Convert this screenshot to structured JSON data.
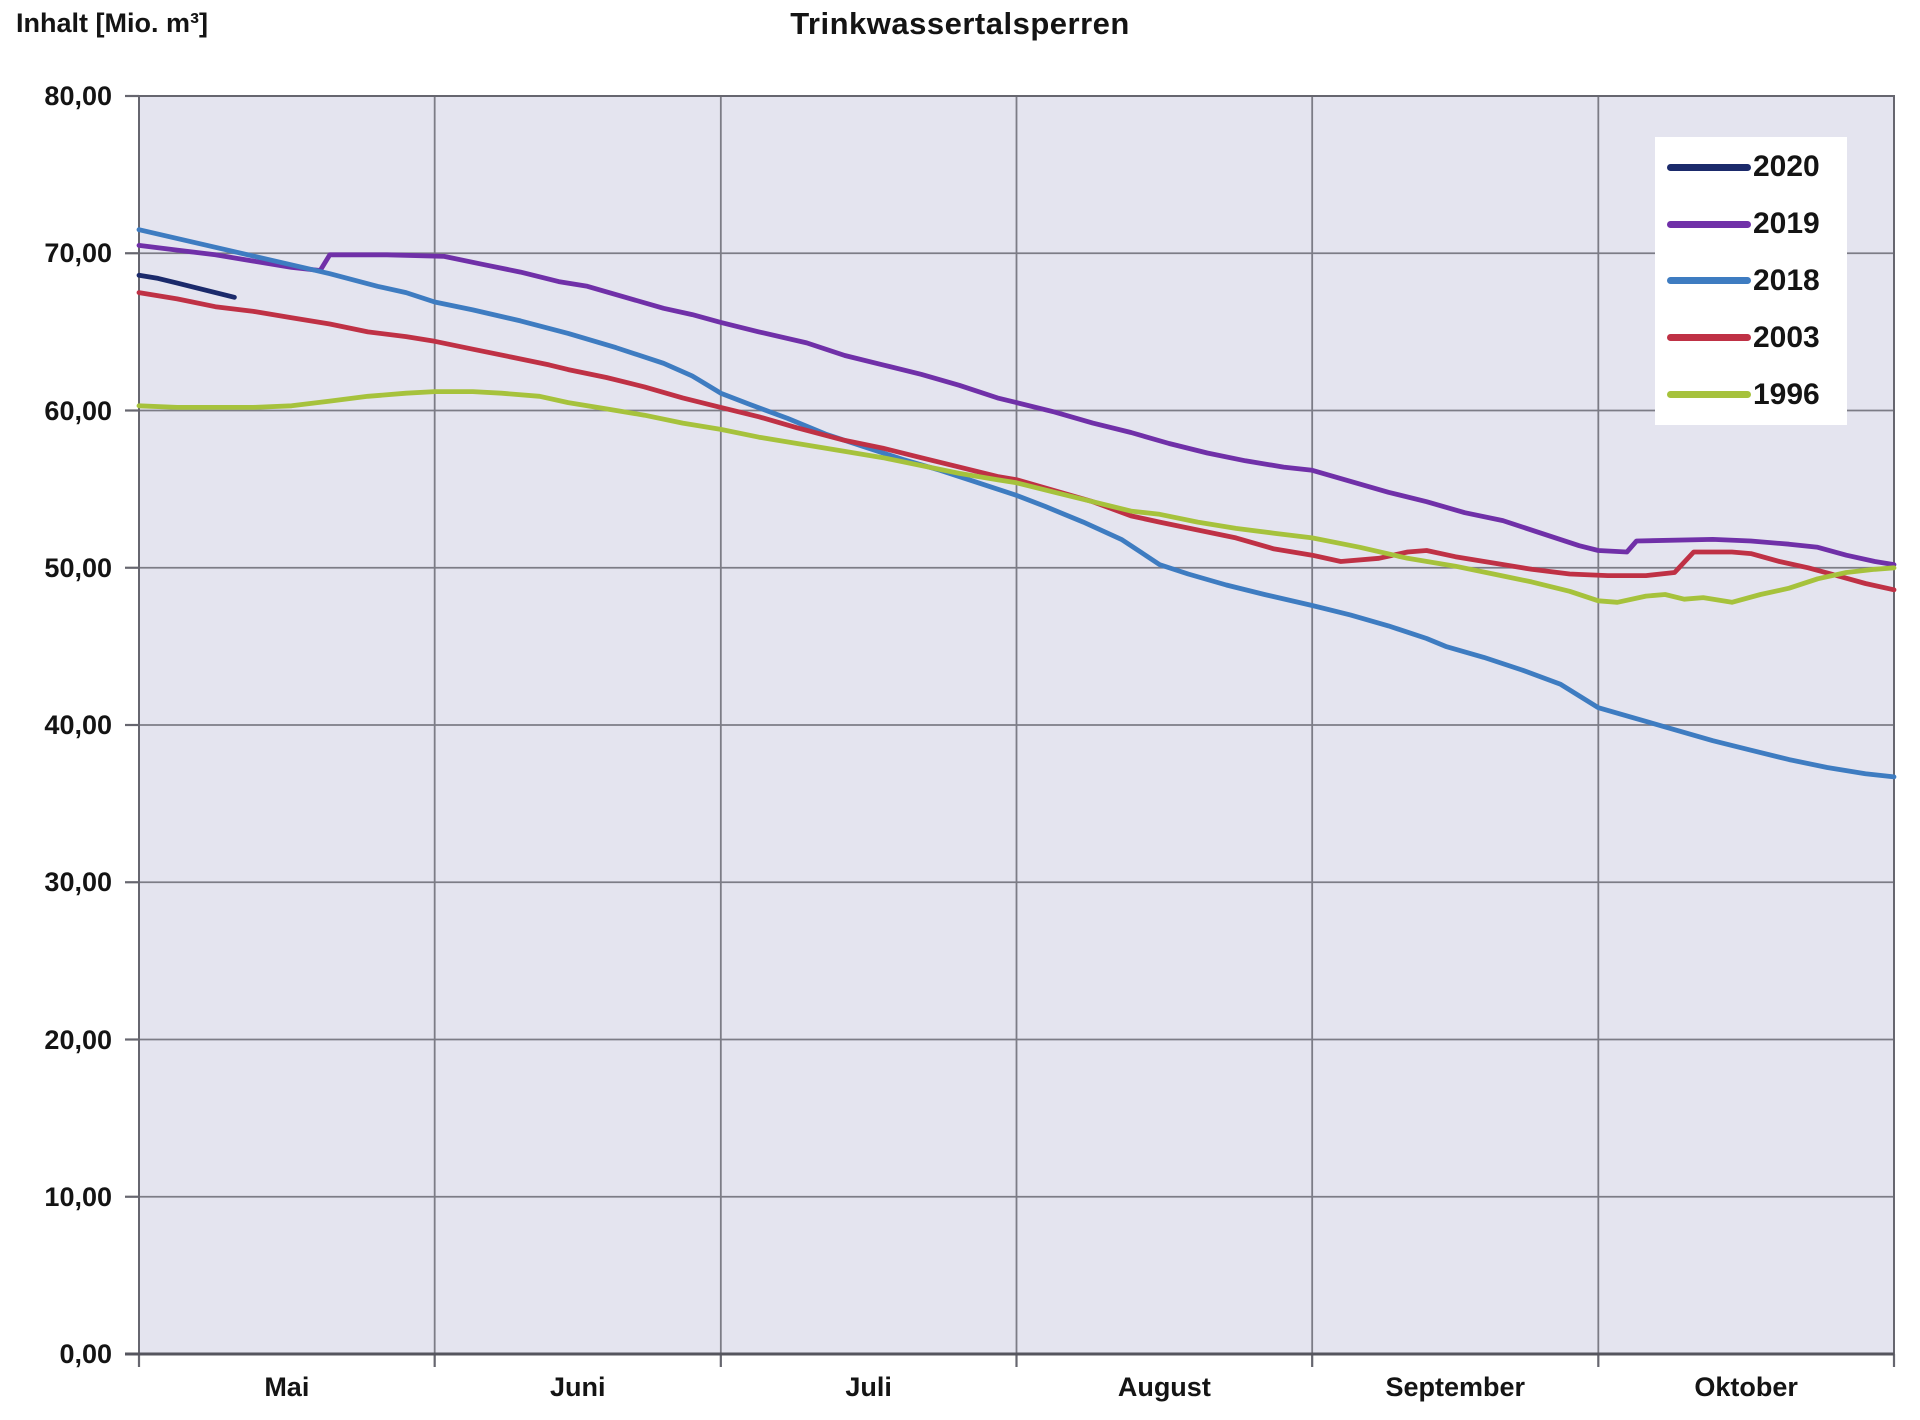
{
  "chart_data": {
    "type": "line",
    "title": "Trinkwassertalsperren",
    "ylabel": "Inhalt [Mio. m³]",
    "xlabel": "",
    "plot_bg_color": "#e4e4ef",
    "gridline_color": "#7c7c86",
    "frame_color": "#66666f",
    "grid": "on",
    "legend_position": "top-right-inside",
    "y_axis": {
      "min": 0,
      "max": 80,
      "tick_step": 10,
      "tick_values": [
        80,
        70,
        60,
        50,
        40,
        30,
        20,
        10,
        0
      ],
      "tick_labels": [
        "80,00",
        "70,00",
        "60,00",
        "50,00",
        "40,00",
        "30,00",
        "20,00",
        "10,00",
        "0,00"
      ]
    },
    "x_axis": {
      "unit": "days from 1 May",
      "domain_days": [
        0,
        184
      ],
      "month_labels": [
        "Mai",
        "Juni",
        "Juli",
        "August",
        "September",
        "Oktober"
      ],
      "month_lengths": [
        31,
        30,
        31,
        31,
        30,
        31
      ],
      "month_boundary_days": [
        0,
        31,
        61,
        92,
        123,
        153,
        184
      ]
    },
    "series": [
      {
        "name": "2020",
        "color": "#1B2A6B",
        "points": [
          [
            0,
            68.6
          ],
          [
            2,
            68.4
          ],
          [
            4,
            68.1
          ],
          [
            6,
            67.8
          ],
          [
            8,
            67.5
          ],
          [
            10,
            67.2
          ]
        ]
      },
      {
        "name": "2019",
        "color": "#7030A8",
        "points": [
          [
            0,
            70.5
          ],
          [
            4,
            70.2
          ],
          [
            8,
            69.9
          ],
          [
            12,
            69.5
          ],
          [
            16,
            69.1
          ],
          [
            19,
            68.9
          ],
          [
            20,
            69.9
          ],
          [
            26,
            69.9
          ],
          [
            32,
            69.8
          ],
          [
            36,
            69.3
          ],
          [
            40,
            68.8
          ],
          [
            44,
            68.2
          ],
          [
            47,
            67.9
          ],
          [
            51,
            67.2
          ],
          [
            55,
            66.5
          ],
          [
            58,
            66.1
          ],
          [
            61,
            65.6
          ],
          [
            65,
            65.0
          ],
          [
            70,
            64.3
          ],
          [
            74,
            63.5
          ],
          [
            78,
            62.9
          ],
          [
            82,
            62.3
          ],
          [
            86,
            61.6
          ],
          [
            90,
            60.8
          ],
          [
            92,
            60.5
          ],
          [
            96,
            59.9
          ],
          [
            100,
            59.2
          ],
          [
            104,
            58.6
          ],
          [
            108,
            57.9
          ],
          [
            112,
            57.3
          ],
          [
            116,
            56.8
          ],
          [
            120,
            56.4
          ],
          [
            123,
            56.2
          ],
          [
            127,
            55.5
          ],
          [
            131,
            54.8
          ],
          [
            135,
            54.2
          ],
          [
            139,
            53.5
          ],
          [
            143,
            53.0
          ],
          [
            147,
            52.2
          ],
          [
            151,
            51.4
          ],
          [
            153,
            51.1
          ],
          [
            156,
            51.0
          ],
          [
            157,
            51.7
          ],
          [
            165,
            51.8
          ],
          [
            169,
            51.7
          ],
          [
            173,
            51.5
          ],
          [
            176,
            51.3
          ],
          [
            179,
            50.8
          ],
          [
            182,
            50.4
          ],
          [
            184,
            50.2
          ]
        ]
      },
      {
        "name": "2018",
        "color": "#3E7CC1",
        "points": [
          [
            0,
            71.5
          ],
          [
            5,
            70.8
          ],
          [
            10,
            70.1
          ],
          [
            15,
            69.4
          ],
          [
            20,
            68.7
          ],
          [
            25,
            67.9
          ],
          [
            28,
            67.5
          ],
          [
            31,
            66.9
          ],
          [
            35,
            66.4
          ],
          [
            40,
            65.7
          ],
          [
            45,
            64.9
          ],
          [
            50,
            64.0
          ],
          [
            55,
            63.0
          ],
          [
            58,
            62.2
          ],
          [
            61,
            61.1
          ],
          [
            64,
            60.4
          ],
          [
            68,
            59.5
          ],
          [
            72,
            58.5
          ],
          [
            76,
            57.7
          ],
          [
            80,
            56.9
          ],
          [
            84,
            56.2
          ],
          [
            88,
            55.4
          ],
          [
            92,
            54.6
          ],
          [
            95,
            53.9
          ],
          [
            99,
            52.9
          ],
          [
            103,
            51.8
          ],
          [
            107,
            50.2
          ],
          [
            110,
            49.6
          ],
          [
            114,
            48.9
          ],
          [
            118,
            48.3
          ],
          [
            123,
            47.6
          ],
          [
            127,
            47.0
          ],
          [
            131,
            46.3
          ],
          [
            135,
            45.5
          ],
          [
            137,
            45.0
          ],
          [
            141,
            44.3
          ],
          [
            145,
            43.5
          ],
          [
            149,
            42.6
          ],
          [
            153,
            41.1
          ],
          [
            157,
            40.4
          ],
          [
            161,
            39.7
          ],
          [
            165,
            39.0
          ],
          [
            169,
            38.4
          ],
          [
            173,
            37.8
          ],
          [
            177,
            37.3
          ],
          [
            181,
            36.9
          ],
          [
            184,
            36.7
          ]
        ]
      },
      {
        "name": "2003",
        "color": "#BF3145",
        "points": [
          [
            0,
            67.5
          ],
          [
            4,
            67.1
          ],
          [
            8,
            66.6
          ],
          [
            12,
            66.3
          ],
          [
            16,
            65.9
          ],
          [
            20,
            65.5
          ],
          [
            24,
            65.0
          ],
          [
            28,
            64.7
          ],
          [
            31,
            64.4
          ],
          [
            35,
            63.9
          ],
          [
            39,
            63.4
          ],
          [
            43,
            62.9
          ],
          [
            45,
            62.6
          ],
          [
            49,
            62.1
          ],
          [
            53,
            61.5
          ],
          [
            57,
            60.8
          ],
          [
            61,
            60.2
          ],
          [
            65,
            59.6
          ],
          [
            69,
            58.9
          ],
          [
            74,
            58.1
          ],
          [
            78,
            57.6
          ],
          [
            82,
            57.0
          ],
          [
            86,
            56.4
          ],
          [
            90,
            55.8
          ],
          [
            92,
            55.6
          ],
          [
            96,
            54.9
          ],
          [
            100,
            54.2
          ],
          [
            104,
            53.3
          ],
          [
            107,
            52.9
          ],
          [
            111,
            52.4
          ],
          [
            115,
            51.9
          ],
          [
            119,
            51.2
          ],
          [
            123,
            50.8
          ],
          [
            126,
            50.4
          ],
          [
            130,
            50.6
          ],
          [
            133,
            51.0
          ],
          [
            135,
            51.1
          ],
          [
            138,
            50.7
          ],
          [
            142,
            50.3
          ],
          [
            146,
            49.9
          ],
          [
            150,
            49.6
          ],
          [
            154,
            49.5
          ],
          [
            158,
            49.5
          ],
          [
            161,
            49.7
          ],
          [
            163,
            51.0
          ],
          [
            167,
            51.0
          ],
          [
            169,
            50.9
          ],
          [
            172,
            50.4
          ],
          [
            175,
            50.0
          ],
          [
            178,
            49.5
          ],
          [
            181,
            49.0
          ],
          [
            184,
            48.6
          ]
        ]
      },
      {
        "name": "1996",
        "color": "#A6C23C",
        "points": [
          [
            0,
            60.3
          ],
          [
            4,
            60.2
          ],
          [
            8,
            60.2
          ],
          [
            12,
            60.2
          ],
          [
            16,
            60.3
          ],
          [
            20,
            60.6
          ],
          [
            24,
            60.9
          ],
          [
            28,
            61.1
          ],
          [
            31,
            61.2
          ],
          [
            35,
            61.2
          ],
          [
            38,
            61.1
          ],
          [
            42,
            60.9
          ],
          [
            45,
            60.5
          ],
          [
            49,
            60.1
          ],
          [
            53,
            59.7
          ],
          [
            57,
            59.2
          ],
          [
            61,
            58.8
          ],
          [
            65,
            58.3
          ],
          [
            69,
            57.9
          ],
          [
            74,
            57.4
          ],
          [
            78,
            57.0
          ],
          [
            82,
            56.5
          ],
          [
            86,
            56.0
          ],
          [
            90,
            55.6
          ],
          [
            92,
            55.4
          ],
          [
            96,
            54.8
          ],
          [
            100,
            54.2
          ],
          [
            104,
            53.6
          ],
          [
            107,
            53.4
          ],
          [
            111,
            52.9
          ],
          [
            115,
            52.5
          ],
          [
            119,
            52.2
          ],
          [
            123,
            51.9
          ],
          [
            128,
            51.3
          ],
          [
            133,
            50.6
          ],
          [
            138,
            50.1
          ],
          [
            142,
            49.6
          ],
          [
            146,
            49.1
          ],
          [
            150,
            48.5
          ],
          [
            153,
            47.9
          ],
          [
            155,
            47.8
          ],
          [
            158,
            48.2
          ],
          [
            160,
            48.3
          ],
          [
            162,
            48.0
          ],
          [
            164,
            48.1
          ],
          [
            167,
            47.8
          ],
          [
            170,
            48.3
          ],
          [
            173,
            48.7
          ],
          [
            176,
            49.3
          ],
          [
            179,
            49.7
          ],
          [
            182,
            49.9
          ],
          [
            184,
            50.0
          ]
        ]
      }
    ]
  }
}
